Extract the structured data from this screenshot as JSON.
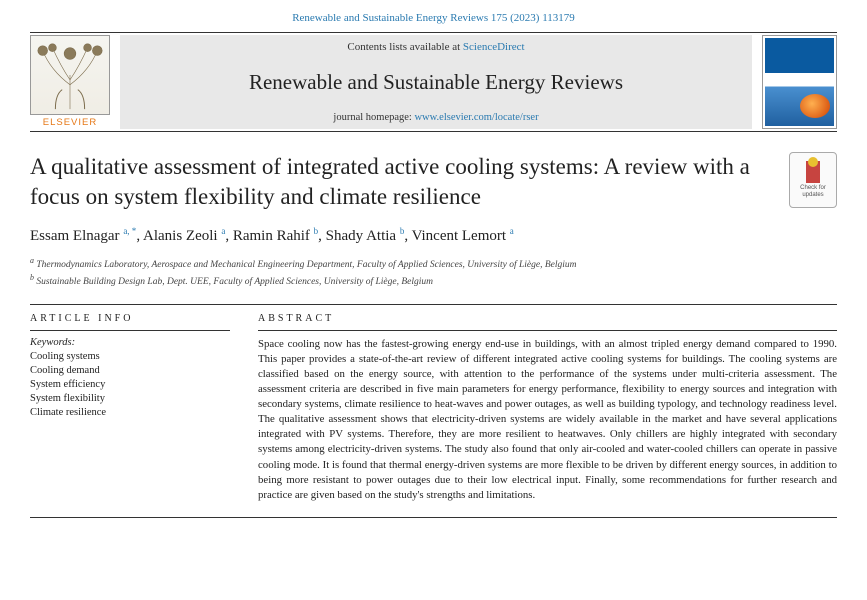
{
  "citation": "Renewable and Sustainable Energy Reviews 175 (2023) 113179",
  "header": {
    "contents_prefix": "Contents lists available at ",
    "contents_link": "ScienceDirect",
    "journal_name": "Renewable and Sustainable Energy Reviews",
    "homepage_prefix": "journal homepage: ",
    "homepage_url": "www.elsevier.com/locate/rser",
    "publisher_logo_text": "ELSEVIER"
  },
  "check_updates": {
    "line1": "Check for",
    "line2": "updates"
  },
  "title": "A qualitative assessment of integrated active cooling systems: A review with a focus on system flexibility and climate resilience",
  "authors": [
    {
      "name": "Essam Elnagar",
      "marks": "a, *"
    },
    {
      "name": "Alanis Zeoli",
      "marks": "a"
    },
    {
      "name": "Ramin Rahif",
      "marks": "b"
    },
    {
      "name": "Shady Attia",
      "marks": "b"
    },
    {
      "name": "Vincent Lemort",
      "marks": "a"
    }
  ],
  "affiliations": [
    {
      "mark": "a",
      "text": "Thermodynamics Laboratory, Aerospace and Mechanical Engineering Department, Faculty of Applied Sciences, University of Liège, Belgium"
    },
    {
      "mark": "b",
      "text": "Sustainable Building Design Lab, Dept. UEE, Faculty of Applied Sciences, University of Liège, Belgium"
    }
  ],
  "article_info": {
    "heading": "ARTICLE INFO",
    "keywords_label": "Keywords:",
    "keywords": [
      "Cooling systems",
      "Cooling demand",
      "System efficiency",
      "System flexibility",
      "Climate resilience"
    ]
  },
  "abstract": {
    "heading": "ABSTRACT",
    "body": "Space cooling now has the fastest-growing energy end-use in buildings, with an almost tripled energy demand compared to 1990. This paper provides a state-of-the-art review of different integrated active cooling systems for buildings. The cooling systems are classified based on the energy source, with attention to the performance of the systems under multi-criteria assessment. The assessment criteria are described in five main parameters for energy performance, flexibility to energy sources and integration with secondary systems, climate resilience to heat-waves and power outages, as well as building typology, and technology readiness level. The qualitative assessment shows that electricity-driven systems are widely available in the market and have several applications integrated with PV systems. Therefore, they are more resilient to heatwaves. Only chillers are highly integrated with secondary systems among electricity-driven systems. The study also found that only air-cooled and water-cooled chillers can operate in passive cooling mode. It is found that thermal energy-driven systems are more flexible to be driven by different energy sources, in addition to being more resistant to power outages due to their low electrical input. Finally, some recommendations for further research and practice are given based on the study's strengths and limitations."
  },
  "colors": {
    "link": "#2a7ab0",
    "elsevier_orange": "#e67817",
    "grey_bg": "#e8e8e8",
    "rule": "#333333"
  }
}
